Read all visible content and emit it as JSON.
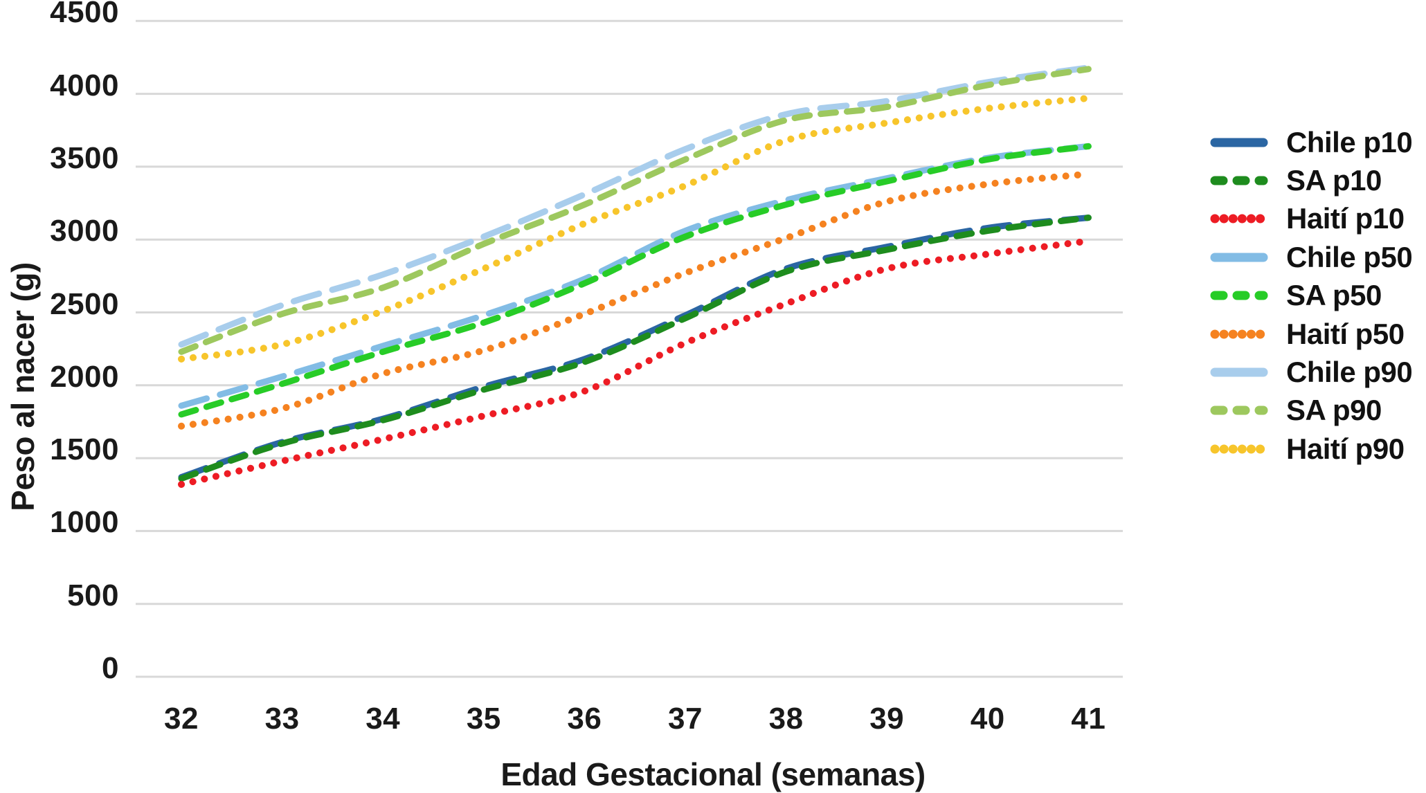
{
  "chart_data": {
    "type": "line",
    "title": "",
    "xlabel": "Edad Gestacional (semanas)",
    "ylabel": "Peso al nacer (g)",
    "x": [
      32,
      33,
      34,
      35,
      36,
      37,
      38,
      39,
      40,
      41
    ],
    "x_tick_labels": [
      "32",
      "33",
      "34",
      "35",
      "36",
      "37",
      "38",
      "39",
      "40",
      "41"
    ],
    "y_ticks": [
      0,
      500,
      1000,
      1500,
      2000,
      2500,
      3000,
      3500,
      4000,
      4500
    ],
    "y_tick_labels": [
      "0",
      "500",
      "1000",
      "1500",
      "2000",
      "2500",
      "3000",
      "3500",
      "4000",
      "4500"
    ],
    "ylim": [
      0,
      4500
    ],
    "xlim": [
      32,
      41
    ],
    "grid": "horizontal",
    "grid_color": "#d8d8d8",
    "text_color": "#1a1a1a",
    "background_color": "#ffffff",
    "legend_position": "right",
    "series": [
      {
        "name": "Chile p10",
        "color": "#2B66A3",
        "style": "long-dash",
        "legend_swatch": "solid",
        "values": [
          1370,
          1610,
          1770,
          1990,
          2180,
          2480,
          2800,
          2950,
          3080,
          3150
        ]
      },
      {
        "name": "SA p10",
        "color": "#1E8C1E",
        "style": "dash",
        "legend_swatch": "dashes",
        "values": [
          1360,
          1600,
          1760,
          1970,
          2160,
          2460,
          2780,
          2930,
          3060,
          3150
        ]
      },
      {
        "name": "Haití p10",
        "color": "#ED1C24",
        "style": "dot",
        "legend_swatch": "dots",
        "values": [
          1320,
          1480,
          1630,
          1790,
          1960,
          2290,
          2560,
          2800,
          2900,
          2990
        ]
      },
      {
        "name": "Chile p50",
        "color": "#82BCE5",
        "style": "long-dash",
        "legend_swatch": "solid",
        "values": [
          1860,
          2060,
          2270,
          2480,
          2730,
          3060,
          3270,
          3420,
          3560,
          3640
        ]
      },
      {
        "name": "SA p50",
        "color": "#27CC27",
        "style": "dash",
        "legend_swatch": "dashes",
        "values": [
          1800,
          2010,
          2230,
          2430,
          2700,
          3020,
          3240,
          3400,
          3550,
          3640
        ]
      },
      {
        "name": "Haití p50",
        "color": "#F58220",
        "style": "dot",
        "legend_swatch": "dots",
        "values": [
          1720,
          1840,
          2080,
          2240,
          2490,
          2770,
          3010,
          3260,
          3380,
          3450
        ]
      },
      {
        "name": "Chile p90",
        "color": "#A8CDEC",
        "style": "long-dash",
        "legend_swatch": "solid",
        "values": [
          2280,
          2550,
          2760,
          3020,
          3310,
          3620,
          3860,
          3950,
          4080,
          4180
        ]
      },
      {
        "name": "SA p90",
        "color": "#9DC85E",
        "style": "dash",
        "legend_swatch": "dashes",
        "values": [
          2230,
          2490,
          2670,
          2970,
          3240,
          3550,
          3820,
          3910,
          4060,
          4170
        ]
      },
      {
        "name": "Haití p90",
        "color": "#F7C52B",
        "style": "dot",
        "legend_swatch": "dots",
        "values": [
          2180,
          2280,
          2510,
          2800,
          3110,
          3370,
          3680,
          3800,
          3900,
          3970
        ]
      }
    ]
  }
}
